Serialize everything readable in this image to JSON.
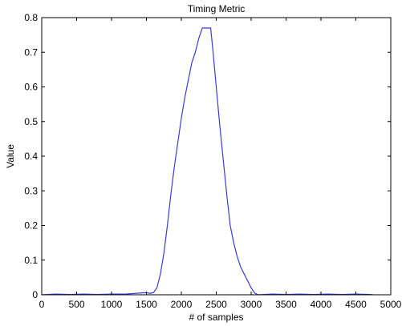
{
  "chart_data": {
    "type": "line",
    "title": "Timing Metric",
    "xlabel": "# of samples",
    "ylabel": "Value",
    "xlim": [
      0,
      5000
    ],
    "ylim": [
      0,
      0.8
    ],
    "xticks": [
      "0",
      "500",
      "1000",
      "1500",
      "2000",
      "2500",
      "3000",
      "3500",
      "4000",
      "4500",
      "5000"
    ],
    "yticks": [
      "0",
      "0.1",
      "0.2",
      "0.3",
      "0.4",
      "0.5",
      "0.6",
      "0.7",
      "0.8"
    ],
    "grid": false,
    "series": [
      {
        "color": "#3b3bd9",
        "x": [
          0,
          200,
          400,
          600,
          800,
          1000,
          1200,
          1400,
          1500,
          1550,
          1600,
          1650,
          1700,
          1750,
          1800,
          1850,
          1900,
          1950,
          2000,
          2050,
          2100,
          2150,
          2200,
          2250,
          2300,
          2320,
          2350,
          2400,
          2420,
          2450,
          2500,
          2550,
          2600,
          2650,
          2700,
          2750,
          2800,
          2850,
          2900,
          2950,
          3000,
          3050,
          3080,
          3100,
          3300,
          3500,
          3700,
          3900,
          4100,
          4300,
          4500,
          4700,
          4750
        ],
        "y": [
          0.0,
          0.002,
          0.001,
          0.002,
          0.001,
          0.002,
          0.002,
          0.005,
          0.006,
          0.004,
          0.006,
          0.02,
          0.06,
          0.12,
          0.2,
          0.29,
          0.37,
          0.44,
          0.51,
          0.57,
          0.62,
          0.67,
          0.7,
          0.74,
          0.77,
          0.77,
          0.77,
          0.77,
          0.77,
          0.71,
          0.6,
          0.49,
          0.39,
          0.29,
          0.2,
          0.15,
          0.11,
          0.08,
          0.06,
          0.04,
          0.02,
          0.005,
          0.002,
          0.0,
          0.002,
          0.001,
          0.002,
          0.001,
          0.002,
          0.001,
          0.002,
          0.001,
          0.0
        ]
      }
    ]
  }
}
